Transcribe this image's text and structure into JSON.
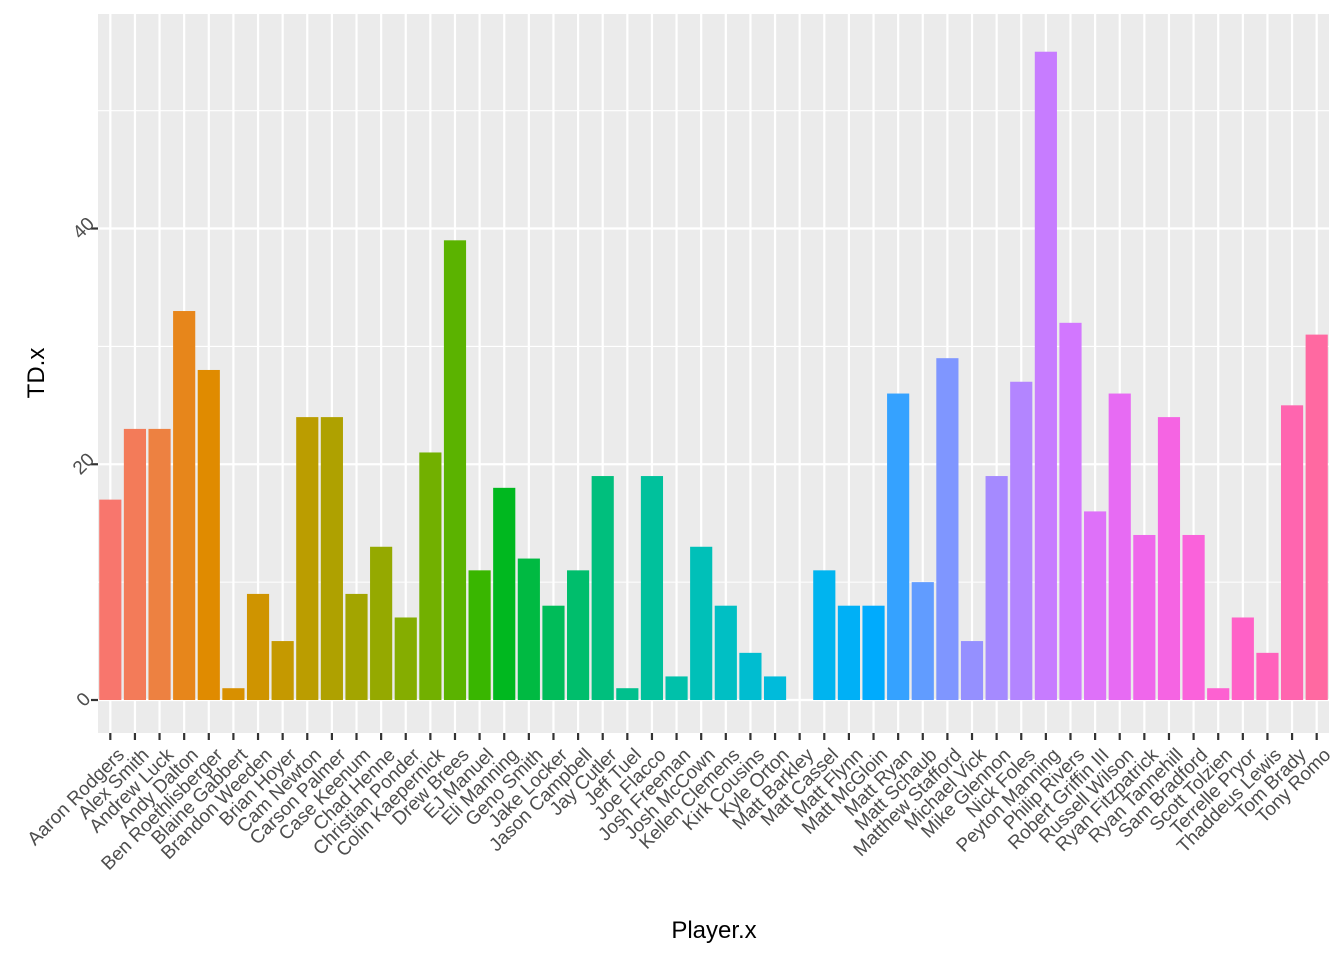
{
  "chart_data": {
    "type": "bar",
    "xlabel": "Player.x",
    "ylabel": "TD.x",
    "ylim": [
      -2.8,
      58.2
    ],
    "yticks": [
      0,
      20,
      40
    ],
    "grid": true,
    "legend": "none",
    "categories": [
      "Aaron Rodgers",
      "Alex Smith",
      "Andrew Luck",
      "Andy Dalton",
      "Ben Roethlisberger",
      "Blaine Gabbert",
      "Brandon Weeden",
      "Brian Hoyer",
      "Cam Newton",
      "Carson Palmer",
      "Case Keenum",
      "Chad Henne",
      "Christian Ponder",
      "Colin Kaepernick",
      "Drew Brees",
      "EJ Manuel",
      "Eli Manning",
      "Geno Smith",
      "Jake Locker",
      "Jason Campbell",
      "Jay Cutler",
      "Jeff Tuel",
      "Joe Flacco",
      "Josh Freeman",
      "Josh McCown",
      "Kellen Clemens",
      "Kirk Cousins",
      "Kyle Orton",
      "Matt Barkley",
      "Matt Cassel",
      "Matt Flynn",
      "Matt McGloin",
      "Matt Ryan",
      "Matt Schaub",
      "Matthew Stafford",
      "Michael Vick",
      "Mike Glennon",
      "Nick Foles",
      "Peyton Manning",
      "Philip Rivers",
      "Robert Griffin III",
      "Russell Wilson",
      "Ryan Fitzpatrick",
      "Ryan Tannehill",
      "Sam Bradford",
      "Scott Tolzien",
      "Terrelle Pryor",
      "Thaddeus Lewis",
      "Tom Brady",
      "Tony Romo"
    ],
    "values": [
      17,
      23,
      23,
      33,
      28,
      1,
      9,
      5,
      24,
      24,
      9,
      13,
      7,
      21,
      39,
      11,
      18,
      12,
      8,
      11,
      19,
      1,
      19,
      2,
      13,
      8,
      4,
      2,
      0,
      11,
      8,
      8,
      26,
      10,
      29,
      5,
      19,
      27,
      55,
      32,
      16,
      26,
      14,
      24,
      14,
      1,
      7,
      4,
      25,
      31
    ],
    "colors": [
      "#F8766D",
      "#F37B59",
      "#ED8141",
      "#E7861B",
      "#E08B00",
      "#D89000",
      "#CF9400",
      "#C59900",
      "#BB9D00",
      "#AFA100",
      "#A3A500",
      "#95A900",
      "#85AD00",
      "#72B000",
      "#5BB300",
      "#39B600",
      "#00B81F",
      "#00BA42",
      "#00BC59",
      "#00BE6C",
      "#00BF7D",
      "#00C08D",
      "#00C19C",
      "#00C1AA",
      "#00C0B8",
      "#00BFC4",
      "#00BDD0",
      "#00BBDB",
      "#00B8E5",
      "#00B4EF",
      "#00B0F6",
      "#00ABFD",
      "#35A2FF",
      "#619CFF",
      "#7F96FF",
      "#9590FF",
      "#A58AFF",
      "#B385FF",
      "#C77CFF",
      "#D277FF",
      "#DE71F9",
      "#E76BF3",
      "#EF67EB",
      "#F564E3",
      "#FA62DB",
      "#FD61D1",
      "#FF61C7",
      "#FF62BC",
      "#FF65AF",
      "#FF69A1"
    ]
  }
}
